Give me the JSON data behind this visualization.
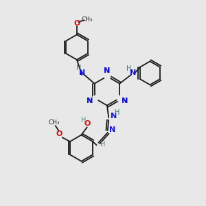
{
  "bg_color": "#e8e8e8",
  "bond_color": "#1a1a1a",
  "n_color": "#1414cc",
  "o_color": "#cc1414",
  "h_color": "#4a7a7a",
  "figsize": [
    3.0,
    3.0
  ],
  "dpi": 100,
  "xlim": [
    0,
    10
  ],
  "ylim": [
    0,
    10
  ]
}
